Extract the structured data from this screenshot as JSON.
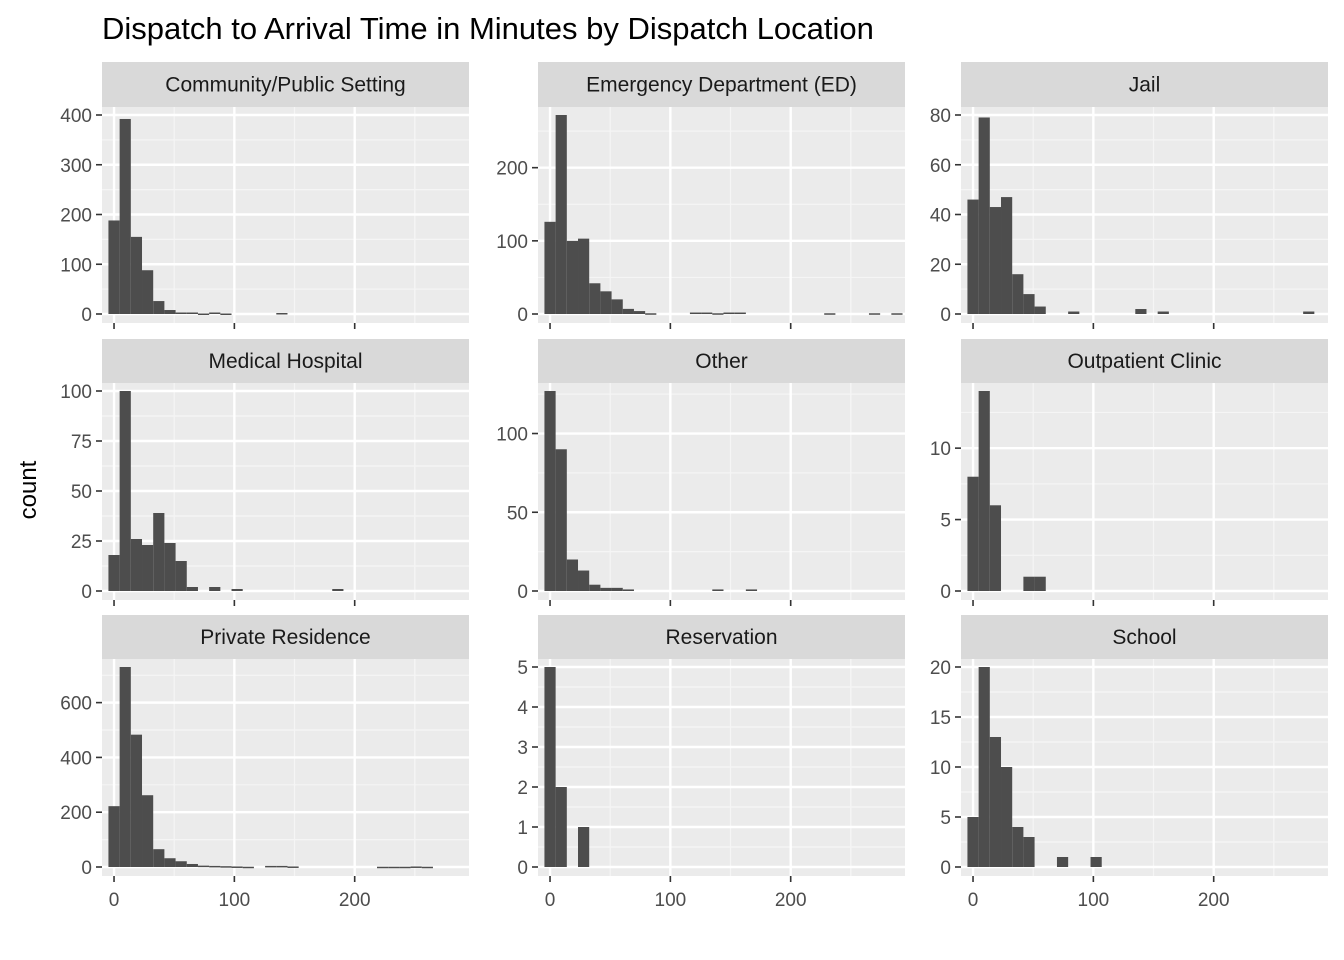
{
  "chart_data": {
    "type": "bar",
    "title": "Dispatch to Arrival Time in Minutes by Dispatch Location",
    "xlabel": "",
    "ylabel": "count",
    "grid": true,
    "bin_width": 9.3,
    "xlim": [
      -10,
      295
    ],
    "x_ticks": [
      0,
      100,
      200
    ],
    "panels": [
      {
        "name": "Community/Public Setting",
        "ylim": [
          0,
          400
        ],
        "y_ticks": [
          0,
          100,
          200,
          300,
          400
        ],
        "bin_start": -4.65,
        "values": [
          188,
          392,
          155,
          88,
          26,
          8,
          3,
          3,
          1,
          3,
          1,
          0,
          0,
          0,
          0,
          2
        ]
      },
      {
        "name": "Emergency Department (ED)",
        "ylim": [
          0,
          272
        ],
        "y_ticks": [
          0,
          100,
          200
        ],
        "bin_start": -4.65,
        "values": [
          126,
          272,
          100,
          103,
          42,
          31,
          20,
          7,
          4,
          1,
          0,
          0,
          0,
          2,
          2,
          1,
          2,
          2,
          0,
          0,
          0,
          0,
          0,
          0,
          0,
          1,
          0,
          0,
          0,
          1,
          0,
          1
        ]
      },
      {
        "name": "Jail",
        "ylim": [
          0,
          80
        ],
        "y_ticks": [
          0,
          20,
          40,
          60,
          80
        ],
        "bin_start": -4.65,
        "values": [
          46,
          79,
          43,
          47,
          16,
          8,
          3,
          0,
          0,
          1,
          0,
          0,
          0,
          0,
          0,
          2,
          0,
          1,
          0,
          0,
          0,
          0,
          0,
          0,
          0,
          0,
          0,
          0,
          0,
          0,
          1
        ]
      },
      {
        "name": "Medical Hospital",
        "ylim": [
          0,
          100
        ],
        "y_ticks": [
          0,
          25,
          50,
          75,
          100
        ],
        "bin_start": -4.65,
        "values": [
          18,
          100,
          26,
          23,
          39,
          24,
          15,
          2,
          0,
          2,
          0,
          1,
          0,
          0,
          0,
          0,
          0,
          0,
          0,
          0,
          1
        ]
      },
      {
        "name": "Other",
        "ylim": [
          0,
          127
        ],
        "y_ticks": [
          0,
          50,
          100
        ],
        "bin_start": -4.65,
        "values": [
          127,
          90,
          20,
          13,
          4,
          2,
          2,
          1,
          0,
          0,
          0,
          0,
          0,
          0,
          0,
          1,
          0,
          0,
          1
        ]
      },
      {
        "name": "Outpatient Clinic",
        "ylim": [
          0,
          14
        ],
        "y_ticks": [
          0,
          5,
          10
        ],
        "bin_start": -4.65,
        "values": [
          8,
          14,
          6,
          0,
          0,
          1,
          1
        ]
      },
      {
        "name": "Private Residence",
        "ylim": [
          0,
          730
        ],
        "y_ticks": [
          0,
          200,
          400,
          600
        ],
        "bin_start": -4.65,
        "values": [
          222,
          730,
          483,
          262,
          65,
          32,
          21,
          11,
          5,
          4,
          3,
          2,
          1,
          0,
          4,
          4,
          2,
          0,
          0,
          0,
          0,
          0,
          0,
          0,
          1,
          1,
          1,
          2,
          1
        ]
      },
      {
        "name": "Reservation",
        "ylim": [
          0,
          5
        ],
        "y_ticks": [
          0,
          1,
          2,
          3,
          4,
          5
        ],
        "bin_start": -4.65,
        "values": [
          5,
          2,
          0,
          1
        ]
      },
      {
        "name": "School",
        "ylim": [
          0,
          20
        ],
        "y_ticks": [
          0,
          5,
          10,
          15,
          20
        ],
        "bin_start": -4.65,
        "values": [
          5,
          20,
          13,
          10,
          4,
          3,
          0,
          0,
          1,
          0,
          0,
          1
        ]
      }
    ]
  }
}
